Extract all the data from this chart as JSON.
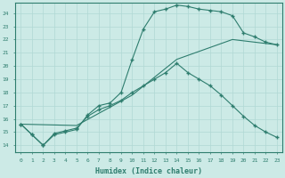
{
  "xlabel": "Humidex (Indice chaleur)",
  "ylabel": "",
  "bg_color": "#cceae6",
  "line_color": "#2e7d6e",
  "grid_color": "#b0d8d4",
  "xlim": [
    -0.5,
    23.5
  ],
  "ylim": [
    13.5,
    24.8
  ],
  "xticks": [
    0,
    1,
    2,
    3,
    4,
    5,
    6,
    7,
    8,
    9,
    10,
    11,
    12,
    13,
    14,
    15,
    16,
    17,
    18,
    19,
    20,
    21,
    22,
    23
  ],
  "yticks": [
    14,
    15,
    16,
    17,
    18,
    19,
    20,
    21,
    22,
    23,
    24
  ],
  "line1_x": [
    0,
    1,
    2,
    3,
    4,
    5,
    6,
    7,
    8,
    9,
    10,
    11,
    12,
    13,
    14,
    15,
    16,
    17,
    18,
    19,
    20,
    21,
    22,
    23
  ],
  "line1_y": [
    15.6,
    14.8,
    14.0,
    14.8,
    15.0,
    15.2,
    16.3,
    17.0,
    17.2,
    18.0,
    20.5,
    22.8,
    24.1,
    24.3,
    24.6,
    24.5,
    24.3,
    24.2,
    24.1,
    23.8,
    22.5,
    22.2,
    21.8,
    21.6
  ],
  "line2_x": [
    0,
    1,
    2,
    3,
    4,
    5,
    6,
    7,
    8,
    9,
    10,
    11,
    12,
    13,
    14,
    15,
    16,
    17,
    18,
    19,
    20,
    21,
    22,
    23
  ],
  "line2_y": [
    15.6,
    14.8,
    14.0,
    14.9,
    15.1,
    15.3,
    16.2,
    16.7,
    17.0,
    17.4,
    18.0,
    18.5,
    19.0,
    19.5,
    20.2,
    19.5,
    19.0,
    18.5,
    17.8,
    17.0,
    16.2,
    15.5,
    15.0,
    14.6
  ],
  "line3_x": [
    0,
    5,
    10,
    14,
    19,
    23
  ],
  "line3_y": [
    15.6,
    15.5,
    17.8,
    20.5,
    22.0,
    21.6
  ]
}
